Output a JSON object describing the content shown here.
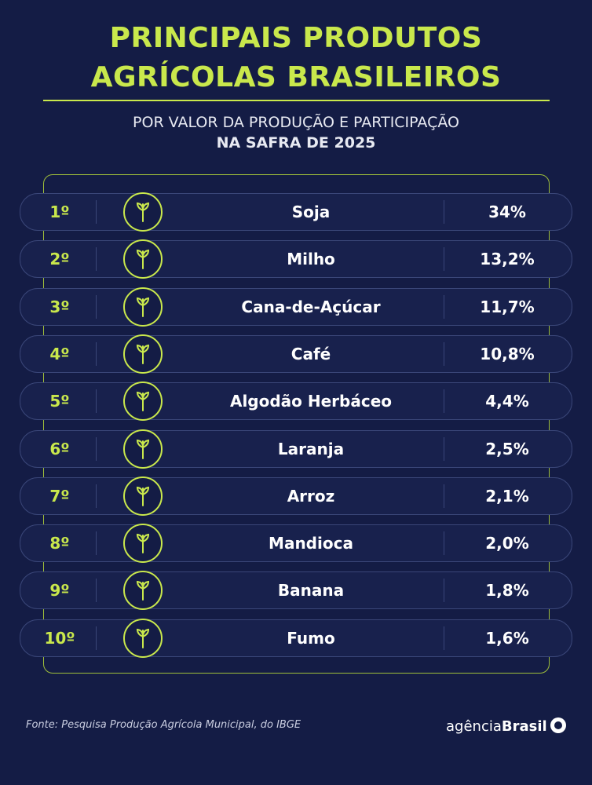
{
  "header": {
    "title": [
      "PRINCIPAIS PRODUTOS",
      "AGRÍCOLAS BRASILEIROS"
    ],
    "subtitle": [
      "POR VALOR DA PRODUÇÃO E PARTICIPAÇÃO",
      "NA SAFRA DE 2025"
    ]
  },
  "table": {
    "rows": [
      [
        "1º",
        "Soja",
        "34%"
      ],
      [
        "2º",
        "Milho",
        "13,2%"
      ],
      [
        "3º",
        "Cana-de-Açúcar",
        "11,7%"
      ],
      [
        "4º",
        "Café",
        "10,8%"
      ],
      [
        "5º",
        "Algodão Herbáceo",
        "4,4%"
      ],
      [
        "6º",
        "Laranja",
        "2,5%"
      ],
      [
        "7º",
        "Arroz",
        "2,1%"
      ],
      [
        "8º",
        "Mandioca",
        "2,0%"
      ],
      [
        "9º",
        "Banana",
        "1,8%"
      ],
      [
        "10º",
        "Fumo",
        "1,6%"
      ]
    ]
  },
  "footer": {
    "source": "Fonte: Pesquisa Produção Agrícola Municipal, do IBGE",
    "logo": [
      "agência",
      "Brasil"
    ]
  }
}
